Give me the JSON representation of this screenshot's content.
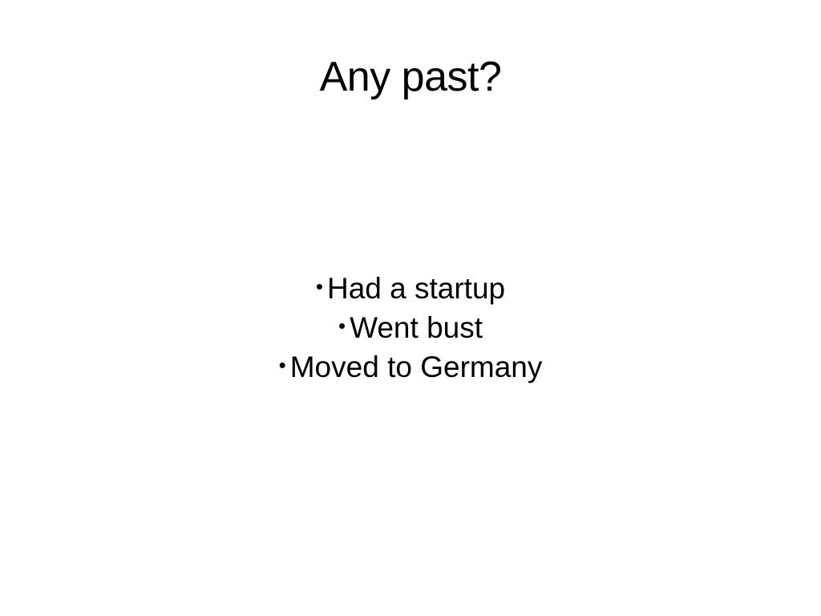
{
  "slide": {
    "title": "Any past?",
    "bullet_symbol": "•",
    "bullets": [
      "Had a startup",
      "Went bust",
      "Moved to Germany"
    ]
  }
}
